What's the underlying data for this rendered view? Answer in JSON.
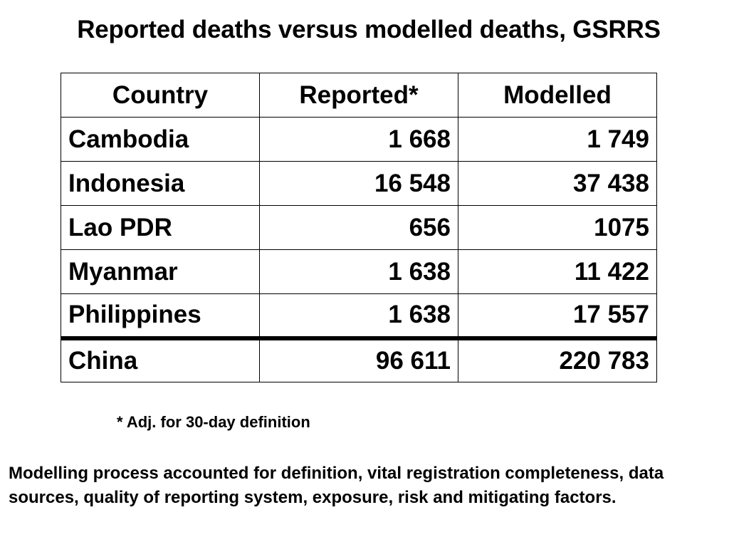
{
  "title": "Reported deaths versus modelled deaths, GSRRS",
  "table": {
    "headers": [
      "Country",
      "Reported*",
      "Modelled"
    ],
    "rows": [
      {
        "country": "Cambodia",
        "reported": "1 668",
        "modelled": "1 749"
      },
      {
        "country": "Indonesia",
        "reported": "16 548",
        "modelled": "37 438"
      },
      {
        "country": "Lao PDR",
        "reported": "656",
        "modelled": "1075"
      },
      {
        "country": "Myanmar",
        "reported": "1 638",
        "modelled": "11 422"
      },
      {
        "country": "Philippines",
        "reported": "1 638",
        "modelled": "17 557"
      },
      {
        "country": "China",
        "reported": "96 611",
        "modelled": "220 783"
      }
    ]
  },
  "footnote": "* Adj. for 30-day definition",
  "note": "Modelling process accounted for definition, vital registration completeness, data sources, quality of reporting system, exposure, risk and mitigating factors."
}
